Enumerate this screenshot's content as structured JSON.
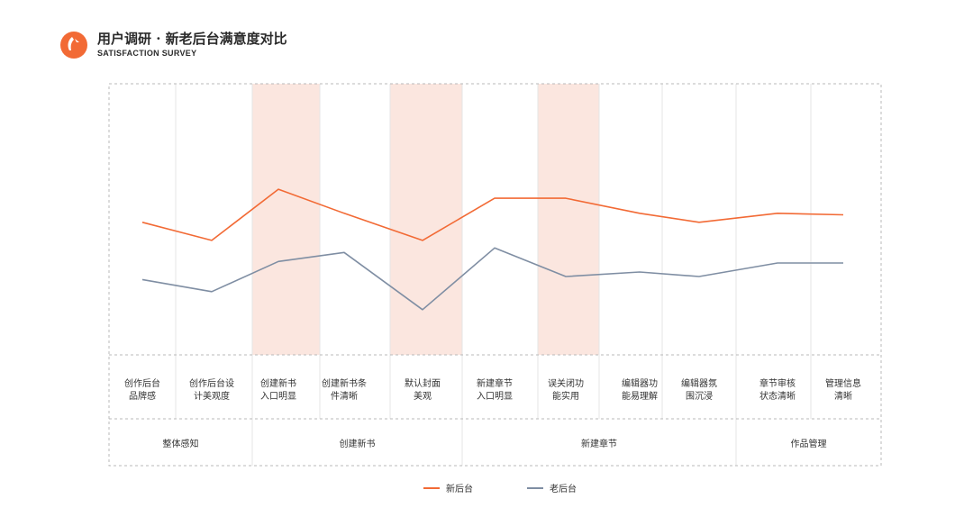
{
  "header": {
    "title": "用户调研 · 新老后台满意度对比",
    "subtitle": "SATISFACTION SURVEY"
  },
  "colors": {
    "new": "#f26a35",
    "old": "#7f8ea3",
    "highlight": "#fbe6df",
    "border": "#b8b8b8",
    "grid": "#e6e6e6"
  },
  "chart_data": {
    "type": "line",
    "categories": [
      [
        "创作后台",
        "品牌感"
      ],
      [
        "创作后台设",
        "计美观度"
      ],
      [
        "创建新书",
        "入口明显"
      ],
      [
        "创建新书条",
        "件清晰"
      ],
      [
        "默认封面",
        "美观"
      ],
      [
        "新建章节",
        "入口明显"
      ],
      [
        "误关闭功",
        "能实用"
      ],
      [
        "编辑器功",
        "能易理解"
      ],
      [
        "编辑器氛",
        "围沉浸"
      ],
      [
        "章节审核",
        "状态清晰"
      ],
      [
        "管理信息",
        "清晰"
      ]
    ],
    "groups": [
      {
        "label": "整体感知",
        "span": [
          0,
          1
        ]
      },
      {
        "label": "创建新书",
        "span": [
          2,
          4
        ]
      },
      {
        "label": "新建章节",
        "span": [
          5,
          8
        ]
      },
      {
        "label": "作品管理",
        "span": [
          9,
          10
        ]
      }
    ],
    "highlighted": [
      2,
      4,
      6
    ],
    "series": [
      {
        "name": "新后台",
        "values": [
          3.4,
          2.8,
          4.5,
          3.7,
          2.8,
          4.2,
          4.2,
          3.7,
          3.4,
          3.7,
          3.65
        ]
      },
      {
        "name": "老后台",
        "values": [
          1.5,
          1.1,
          2.1,
          2.4,
          0.5,
          2.55,
          1.6,
          1.75,
          1.6,
          2.05,
          2.05
        ]
      }
    ],
    "ylim": [
      -1,
      8
    ]
  },
  "legend": {
    "items": [
      "新后台",
      "老后台"
    ]
  }
}
